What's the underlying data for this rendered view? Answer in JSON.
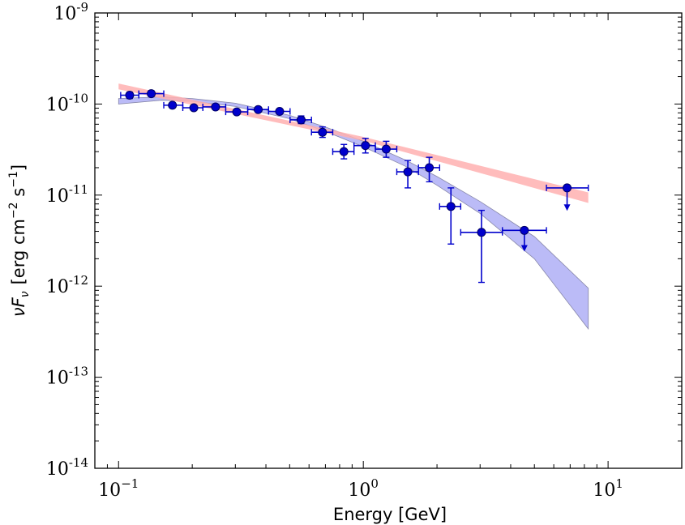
{
  "chart_data": {
    "type": "scatter",
    "title": "",
    "xlabel": "Energy [GeV]",
    "ylabel": {
      "prefix": "νF",
      "sub": "ν",
      "unit": "[erg cm",
      "unit_exp1": "−2",
      "unit_mid": " s",
      "unit_exp2": "−1",
      "unit_end": "]"
    },
    "x_scale": "log",
    "y_scale": "log",
    "xlim": [
      0.08,
      20
    ],
    "ylim": [
      1e-14,
      1e-09
    ],
    "grid": false,
    "x_ticks": [
      {
        "value": 0.1,
        "base": "10",
        "exp": "−1"
      },
      {
        "value": 1,
        "base": "10",
        "exp": "0"
      },
      {
        "value": 10,
        "base": "10",
        "exp": "1"
      }
    ],
    "y_ticks": [
      {
        "value": 1e-09,
        "base": "10",
        "exp": "-9"
      },
      {
        "value": 1e-10,
        "base": "10",
        "exp": "-10"
      },
      {
        "value": 1e-11,
        "base": "10",
        "exp": "-11"
      },
      {
        "value": 1e-12,
        "base": "10",
        "exp": "-12"
      },
      {
        "value": 1e-13,
        "base": "10",
        "exp": "-13"
      },
      {
        "value": 1e-14,
        "base": "10",
        "exp": "-14"
      }
    ],
    "colors": {
      "points": "#0000cc",
      "points_edge": "#000066",
      "band_curved": "#aaaaf5",
      "band_curved_edge": "#8888aa",
      "band_powerlaw": "#ffb0b0"
    },
    "series": [
      {
        "type": "points",
        "points": [
          {
            "x": 0.111,
            "y": 1.25e-10,
            "xlo": 0.102,
            "xhi": 0.121,
            "ylo": 1.15e-10,
            "yhi": 1.35e-10
          },
          {
            "x": 0.136,
            "y": 1.3e-10,
            "xlo": 0.121,
            "xhi": 0.153,
            "ylo": 1.22e-10,
            "yhi": 1.4e-10
          },
          {
            "x": 0.166,
            "y": 9.7e-11,
            "xlo": 0.153,
            "xhi": 0.183,
            "ylo": 9.1e-11,
            "yhi": 1.03e-10
          },
          {
            "x": 0.203,
            "y": 9.1e-11,
            "xlo": 0.183,
            "xhi": 0.221,
            "ylo": 8.6e-11,
            "yhi": 9.6e-11
          },
          {
            "x": 0.249,
            "y": 9.3e-11,
            "xlo": 0.221,
            "xhi": 0.274,
            "ylo": 8.8e-11,
            "yhi": 9.8e-11
          },
          {
            "x": 0.304,
            "y": 8.2e-11,
            "xlo": 0.274,
            "xhi": 0.337,
            "ylo": 7.7e-11,
            "yhi": 8.7e-11
          },
          {
            "x": 0.372,
            "y": 8.7e-11,
            "xlo": 0.337,
            "xhi": 0.41,
            "ylo": 8.2e-11,
            "yhi": 9.2e-11
          },
          {
            "x": 0.455,
            "y": 8.3e-11,
            "xlo": 0.41,
            "xhi": 0.502,
            "ylo": 7.8e-11,
            "yhi": 8.8e-11
          },
          {
            "x": 0.557,
            "y": 6.7e-11,
            "xlo": 0.502,
            "xhi": 0.614,
            "ylo": 6.1e-11,
            "yhi": 7.4e-11
          },
          {
            "x": 0.681,
            "y": 4.9e-11,
            "xlo": 0.614,
            "xhi": 0.75,
            "ylo": 4.3e-11,
            "yhi": 5.6e-11
          },
          {
            "x": 0.833,
            "y": 3e-11,
            "xlo": 0.75,
            "xhi": 0.916,
            "ylo": 2.5e-11,
            "yhi": 3.6e-11
          },
          {
            "x": 1.02,
            "y": 3.5e-11,
            "xlo": 0.916,
            "xhi": 1.12,
            "ylo": 2.9e-11,
            "yhi": 4.2e-11
          },
          {
            "x": 1.24,
            "y": 3.2e-11,
            "xlo": 1.12,
            "xhi": 1.37,
            "ylo": 2.6e-11,
            "yhi": 3.9e-11
          },
          {
            "x": 1.52,
            "y": 1.8e-11,
            "xlo": 1.37,
            "xhi": 1.68,
            "ylo": 1.2e-11,
            "yhi": 2.4e-11
          },
          {
            "x": 1.86,
            "y": 2e-11,
            "xlo": 1.68,
            "xhi": 2.05,
            "ylo": 1.4e-11,
            "yhi": 2.6e-11
          },
          {
            "x": 2.28,
            "y": 7.5e-12,
            "xlo": 2.05,
            "xhi": 2.5,
            "ylo": 2.9e-12,
            "yhi": 1.2e-11
          },
          {
            "x": 3.04,
            "y": 3.9e-12,
            "xlo": 2.5,
            "xhi": 3.7,
            "ylo": 1.1e-12,
            "yhi": 6.8e-12
          }
        ]
      },
      {
        "type": "upper_limits",
        "points": [
          {
            "x": 4.55,
            "y": 4.1e-12,
            "xlo": 3.7,
            "xhi": 5.6,
            "arrow_to": 2.5e-12
          },
          {
            "x": 6.8,
            "y": 1.2e-11,
            "xlo": 5.6,
            "xhi": 8.3,
            "arrow_to": 7e-12
          }
        ]
      },
      {
        "type": "band",
        "style": "curved",
        "x": [
          0.1,
          0.15,
          0.2,
          0.3,
          0.5,
          0.7,
          1.0,
          1.5,
          2.0,
          3.0,
          5.0,
          8.3
        ],
        "upper": [
          1.15e-10,
          1.2e-10,
          1.15e-10,
          1.02e-10,
          7.5e-11,
          5.6e-11,
          3.9e-11,
          2.4e-11,
          1.6e-11,
          8.5e-12,
          3.5e-12,
          9.5e-13
        ],
        "lower": [
          1e-10,
          1.1e-10,
          1.07e-10,
          9.4e-11,
          6.9e-11,
          5e-11,
          3.4e-11,
          2.05e-11,
          1.28e-11,
          6.3e-12,
          2e-12,
          3.4e-13
        ]
      },
      {
        "type": "band",
        "style": "powerlaw",
        "x": [
          0.1,
          1.0,
          8.3
        ],
        "upper": [
          1.68e-10,
          4.35e-11,
          1.07e-11
        ],
        "lower": [
          1.45e-10,
          3.95e-11,
          8.2e-12
        ]
      }
    ]
  }
}
